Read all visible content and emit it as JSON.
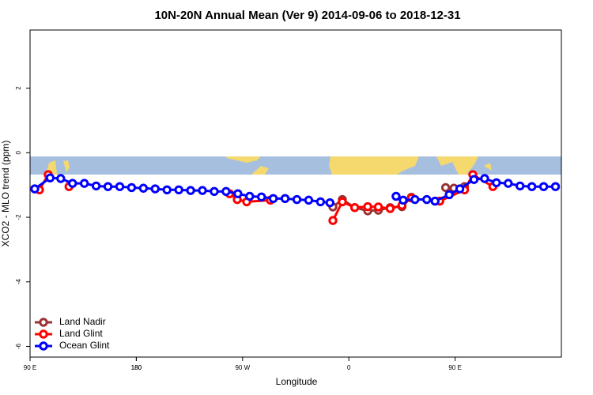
{
  "chart_data": {
    "type": "line",
    "title": "10N-20N Annual Mean (Ver 9)   2014-09-06 to 2018-12-31",
    "xlabel": "Longitude",
    "ylabel": "XCO2 - MLO trend (ppm)",
    "xlim": [
      90,
      540
    ],
    "xticks": [
      {
        "value": 90,
        "label": "90 E"
      },
      180,
      {
        "value": 270,
        "label": "90 W"
      },
      {
        "value": 360,
        "label": "0"
      },
      {
        "value": 450,
        "label": "90 E"
      },
      180.0001
    ],
    "ylim": [
      -6.33,
      3.8
    ],
    "yticks": [
      2,
      0,
      -2,
      -4,
      -6
    ],
    "legend": "bottom-left",
    "series": [
      {
        "name": "Land Nadir",
        "color": "#993333",
        "x": [
          346.5,
          354.5,
          365,
          376,
          385,
          395,
          405,
          413,
          425,
          442,
          449,
          458
        ],
        "values": [
          -1.68,
          -1.45,
          -1.7,
          -1.8,
          -1.78,
          -1.7,
          -1.67,
          -1.38,
          null,
          -1.08,
          -1.1,
          -1.05
        ]
      },
      {
        "name": "Land Glint",
        "color": "#ff0000",
        "x": [
          94,
          98,
          105.4,
          114,
          123,
          190,
          259,
          265.5,
          273.5,
          293.6,
          320,
          346.5,
          354.5,
          365,
          376,
          385,
          395,
          405,
          413,
          425,
          437,
          458,
          465,
          482
        ],
        "values": [
          -1.12,
          -1.15,
          -0.68,
          null,
          -1.05,
          null,
          -1.27,
          -1.45,
          -1.52,
          -1.47,
          null,
          -2.1,
          -1.52,
          -1.7,
          -1.67,
          -1.68,
          -1.73,
          -1.63,
          -1.4,
          null,
          -1.5,
          -1.15,
          -0.68,
          -1.05
        ]
      },
      {
        "name": "Ocean Glint",
        "color": "#0000ff",
        "x": [
          94,
          107,
          116,
          126,
          136,
          146,
          156,
          166,
          176,
          186,
          196,
          206,
          216,
          226,
          236,
          246,
          256,
          266,
          276,
          286,
          296,
          306,
          316,
          326,
          336,
          344,
          370,
          400,
          406,
          416,
          426,
          433,
          445,
          454,
          466,
          475,
          485,
          495,
          505,
          515,
          525,
          535
        ],
        "values": [
          -1.12,
          -0.78,
          -0.8,
          -0.95,
          -0.95,
          -1.03,
          -1.05,
          -1.05,
          -1.08,
          -1.1,
          -1.12,
          -1.15,
          -1.15,
          -1.17,
          -1.17,
          -1.2,
          -1.2,
          -1.27,
          -1.35,
          -1.37,
          -1.42,
          -1.42,
          -1.45,
          -1.47,
          -1.52,
          -1.55,
          null,
          -1.35,
          -1.47,
          -1.45,
          -1.45,
          -1.5,
          -1.3,
          -1.12,
          -0.83,
          -0.8,
          -0.93,
          -0.95,
          -1.03,
          -1.05,
          -1.05,
          -1.05
        ]
      }
    ]
  }
}
